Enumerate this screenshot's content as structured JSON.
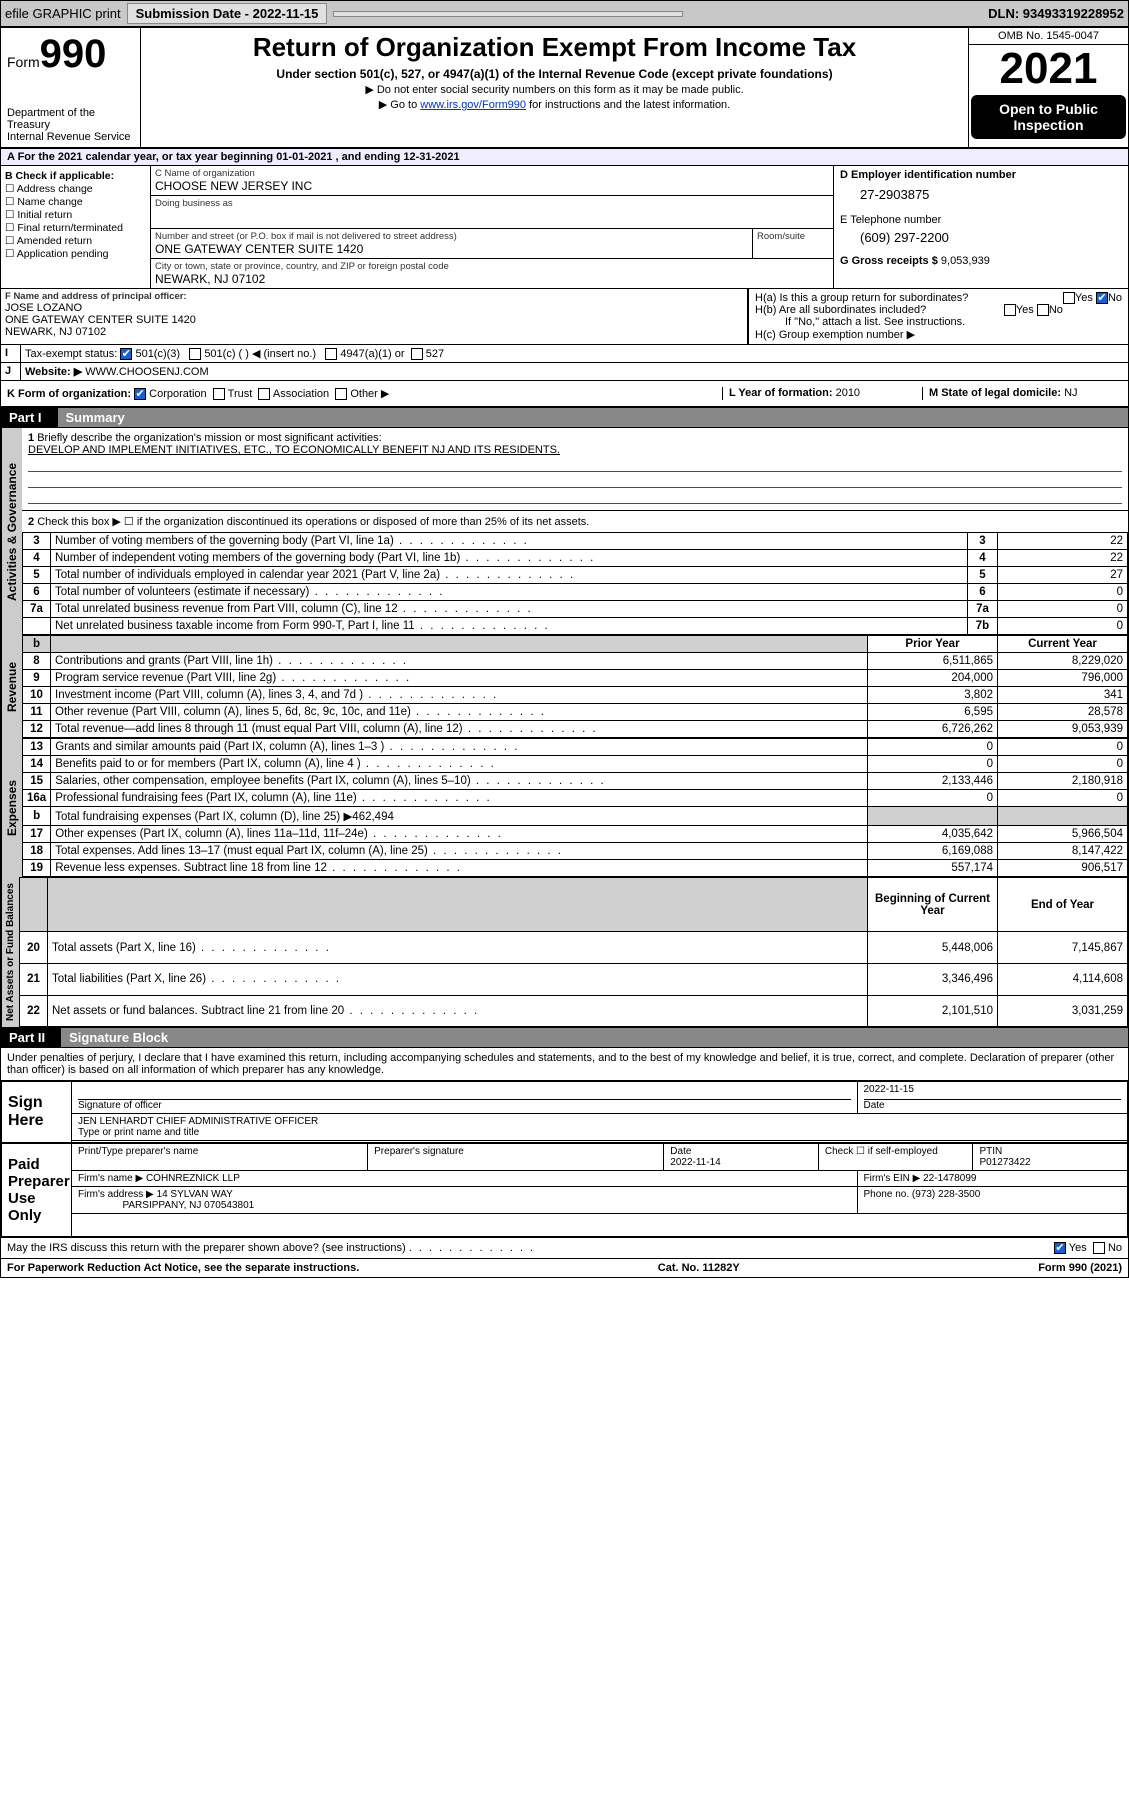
{
  "topbar": {
    "efile": "efile GRAPHIC print",
    "submission": "Submission Date - 2022-11-15",
    "dln": "DLN: 93493319228952"
  },
  "header": {
    "form_label": "Form",
    "form_no": "990",
    "dept": "Department of the Treasury",
    "irs": "Internal Revenue Service",
    "title": "Return of Organization Exempt From Income Tax",
    "sub": "Under section 501(c), 527, or 4947(a)(1) of the Internal Revenue Code (except private foundations)",
    "note1": "▶ Do not enter social security numbers on this form as it may be made public.",
    "note2_pre": "▶ Go to ",
    "note2_link": "www.irs.gov/Form990",
    "note2_post": " for instructions and the latest information.",
    "omb": "OMB No. 1545-0047",
    "year": "2021",
    "open": "Open to Public Inspection"
  },
  "sectionA": "A For the 2021 calendar year, or tax year beginning 01-01-2021    , and ending 12-31-2021",
  "boxB": {
    "title": "B Check if applicable:",
    "items": [
      "Address change",
      "Name change",
      "Initial return",
      "Final return/terminated",
      "Amended return",
      "Application pending"
    ]
  },
  "boxC": {
    "lbl_name": "C Name of organization",
    "name": "CHOOSE NEW JERSEY INC",
    "lbl_dba": "Doing business as",
    "lbl_addr": "Number and street (or P.O. box if mail is not delivered to street address)",
    "addr": "ONE GATEWAY CENTER SUITE 1420",
    "lbl_room": "Room/suite",
    "lbl_city": "City or town, state or province, country, and ZIP or foreign postal code",
    "city": "NEWARK, NJ  07102"
  },
  "boxD": {
    "lbl": "D Employer identification number",
    "val": "27-2903875"
  },
  "boxE": {
    "lbl": "E Telephone number",
    "val": "(609) 297-2200"
  },
  "boxG": {
    "lbl": "G Gross receipts $",
    "val": "9,053,939"
  },
  "boxF": {
    "lbl": "F Name and address of principal officer:",
    "name": "JOSE LOZANO",
    "addr1": "ONE GATEWAY CENTER SUITE 1420",
    "addr2": "NEWARK, NJ  07102"
  },
  "boxH": {
    "a": "H(a)  Is this a group return for subordinates?",
    "b": "H(b)  Are all subordinates included?",
    "b_note": "If \"No,\" attach a list. See instructions.",
    "c": "H(c)  Group exemption number ▶",
    "yes": "Yes",
    "no": "No"
  },
  "boxI": {
    "lbl": "Tax-exempt status:",
    "opts": [
      "501(c)(3)",
      "501(c) (   ) ◀ (insert no.)",
      "4947(a)(1) or",
      "527"
    ]
  },
  "boxJ": {
    "lbl": "Website: ▶",
    "val": "WWW.CHOOSENJ.COM"
  },
  "boxK": {
    "lbl": "K Form of organization:",
    "opts": [
      "Corporation",
      "Trust",
      "Association",
      "Other ▶"
    ]
  },
  "boxL": {
    "lbl": "L Year of formation:",
    "val": "2010"
  },
  "boxM": {
    "lbl": "M State of legal domicile:",
    "val": "NJ"
  },
  "part1": {
    "label": "Part I",
    "title": "Summary"
  },
  "summary": {
    "q1": "Briefly describe the organization's mission or most significant activities:",
    "mission": "DEVELOP AND IMPLEMENT INITIATIVES, ETC., TO ECONOMICALLY BENEFIT NJ AND ITS RESIDENTS.",
    "q2": "Check this box ▶ ☐  if the organization discontinued its operations or disposed of more than 25% of its net assets.",
    "rows_gov": [
      {
        "n": "3",
        "d": "Number of voting members of the governing body (Part VI, line 1a)",
        "box": "3",
        "v": "22"
      },
      {
        "n": "4",
        "d": "Number of independent voting members of the governing body (Part VI, line 1b)",
        "box": "4",
        "v": "22"
      },
      {
        "n": "5",
        "d": "Total number of individuals employed in calendar year 2021 (Part V, line 2a)",
        "box": "5",
        "v": "27"
      },
      {
        "n": "6",
        "d": "Total number of volunteers (estimate if necessary)",
        "box": "6",
        "v": "0"
      },
      {
        "n": "7a",
        "d": "Total unrelated business revenue from Part VIII, column (C), line 12",
        "box": "7a",
        "v": "0"
      },
      {
        "n": "",
        "d": "Net unrelated business taxable income from Form 990-T, Part I, line 11",
        "box": "7b",
        "v": "0"
      }
    ],
    "hdr_b": "b",
    "hdr_prior": "Prior Year",
    "hdr_curr": "Current Year",
    "rev": [
      {
        "n": "8",
        "d": "Contributions and grants (Part VIII, line 1h)",
        "p": "6,511,865",
        "c": "8,229,020"
      },
      {
        "n": "9",
        "d": "Program service revenue (Part VIII, line 2g)",
        "p": "204,000",
        "c": "796,000"
      },
      {
        "n": "10",
        "d": "Investment income (Part VIII, column (A), lines 3, 4, and 7d )",
        "p": "3,802",
        "c": "341"
      },
      {
        "n": "11",
        "d": "Other revenue (Part VIII, column (A), lines 5, 6d, 8c, 9c, 10c, and 11e)",
        "p": "6,595",
        "c": "28,578"
      },
      {
        "n": "12",
        "d": "Total revenue—add lines 8 through 11 (must equal Part VIII, column (A), line 12)",
        "p": "6,726,262",
        "c": "9,053,939"
      }
    ],
    "exp": [
      {
        "n": "13",
        "d": "Grants and similar amounts paid (Part IX, column (A), lines 1–3 )",
        "p": "0",
        "c": "0"
      },
      {
        "n": "14",
        "d": "Benefits paid to or for members (Part IX, column (A), line 4 )",
        "p": "0",
        "c": "0"
      },
      {
        "n": "15",
        "d": "Salaries, other compensation, employee benefits (Part IX, column (A), lines 5–10)",
        "p": "2,133,446",
        "c": "2,180,918"
      },
      {
        "n": "16a",
        "d": "Professional fundraising fees (Part IX, column (A), line 11e)",
        "p": "0",
        "c": "0"
      },
      {
        "n": "b",
        "d": "Total fundraising expenses (Part IX, column (D), line 25) ▶462,494",
        "shade": true
      },
      {
        "n": "17",
        "d": "Other expenses (Part IX, column (A), lines 11a–11d, 11f–24e)",
        "p": "4,035,642",
        "c": "5,966,504"
      },
      {
        "n": "18",
        "d": "Total expenses. Add lines 13–17 (must equal Part IX, column (A), line 25)",
        "p": "6,169,088",
        "c": "8,147,422"
      },
      {
        "n": "19",
        "d": "Revenue less expenses. Subtract line 18 from line 12",
        "p": "557,174",
        "c": "906,517"
      }
    ],
    "hdr_beg": "Beginning of Current Year",
    "hdr_end": "End of Year",
    "net": [
      {
        "n": "20",
        "d": "Total assets (Part X, line 16)",
        "p": "5,448,006",
        "c": "7,145,867"
      },
      {
        "n": "21",
        "d": "Total liabilities (Part X, line 26)",
        "p": "3,346,496",
        "c": "4,114,608"
      },
      {
        "n": "22",
        "d": "Net assets or fund balances. Subtract line 21 from line 20",
        "p": "2,101,510",
        "c": "3,031,259"
      }
    ],
    "tab_gov": "Activities & Governance",
    "tab_rev": "Revenue",
    "tab_exp": "Expenses",
    "tab_net": "Net Assets or Fund Balances"
  },
  "part2": {
    "label": "Part II",
    "title": "Signature Block"
  },
  "sig": {
    "decl": "Under penalties of perjury, I declare that I have examined this return, including accompanying schedules and statements, and to the best of my knowledge and belief, it is true, correct, and complete. Declaration of preparer (other than officer) is based on all information of which preparer has any knowledge.",
    "sign_here": "Sign Here",
    "sig_officer_lbl": "Signature of officer",
    "date_lbl": "Date",
    "date_val": "2022-11-15",
    "officer": "JEN LENHARDT CHIEF ADMINISTRATIVE OFFICER",
    "officer_lbl": "Type or print name and title",
    "paid": "Paid Preparer Use Only",
    "prep_name_lbl": "Print/Type preparer's name",
    "prep_sig_lbl": "Preparer's signature",
    "prep_date_lbl": "Date",
    "prep_date": "2022-11-14",
    "self_lbl": "Check ☐ if self-employed",
    "ptin_lbl": "PTIN",
    "ptin": "P01273422",
    "firm_name_lbl": "Firm's name    ▶",
    "firm_name": "COHNREZNICK LLP",
    "firm_ein_lbl": "Firm's EIN ▶",
    "firm_ein": "22-1478099",
    "firm_addr_lbl": "Firm's address ▶",
    "firm_addr": "14 SYLVAN WAY",
    "firm_city": "PARSIPPANY, NJ  070543801",
    "phone_lbl": "Phone no.",
    "phone": "(973) 228-3500",
    "discuss": "May the IRS discuss this return with the preparer shown above? (see instructions)"
  },
  "footer": {
    "left": "For Paperwork Reduction Act Notice, see the separate instructions.",
    "mid": "Cat. No. 11282Y",
    "right": "Form 990 (2021)"
  }
}
